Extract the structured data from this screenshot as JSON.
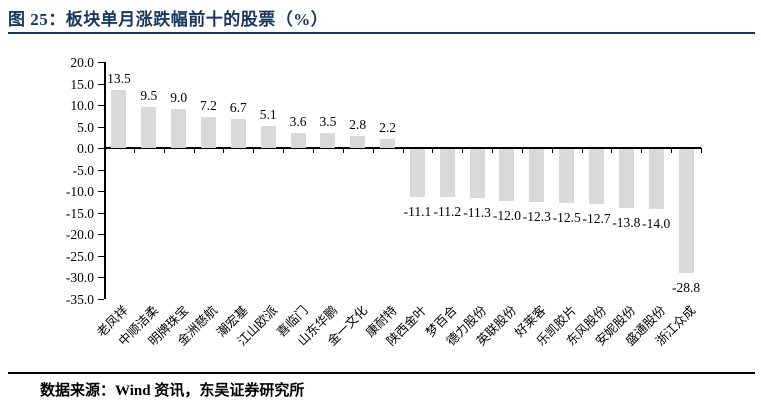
{
  "header": {
    "title": "图 25：板块单月涨跌幅前十的股票（%）"
  },
  "footer": {
    "source": "数据来源：Wind 资讯，东吴证券研究所"
  },
  "colors": {
    "accent_navy": "#17375E",
    "bar_fill": "#D9D9D9",
    "axis": "#000000",
    "text": "#000000"
  },
  "chart_data": {
    "type": "bar",
    "title": "板块单月涨跌幅前十的股票（%）",
    "categories": [
      "老凤祥",
      "中顺洁柔",
      "明牌珠宝",
      "金洲慈航",
      "潮宏基",
      "江山欧派",
      "喜临门",
      "山东华鹏",
      "金一文化",
      "康耐特",
      "陕西金叶",
      "梦百合",
      "德力股份",
      "英联股份",
      "好莱客",
      "乐凯胶片",
      "东风股份",
      "安妮股份",
      "盛通股份",
      "浙江众成"
    ],
    "values": [
      13.5,
      9.5,
      9.0,
      7.2,
      6.7,
      5.1,
      3.6,
      3.5,
      2.8,
      2.2,
      -11.1,
      -11.2,
      -11.3,
      -12.0,
      -12.3,
      -12.5,
      -12.7,
      -13.8,
      -14.0,
      -28.8
    ],
    "data_label_texts": [
      "13.5",
      "9.5",
      "9.0",
      "7.2",
      "6.7",
      "5.1",
      "3.6",
      "3.5",
      "2.8",
      "2.2",
      "-11.1",
      "-11.2",
      "-11.3",
      "-12.0",
      "-12.3",
      "-12.5",
      "-12.7",
      "-13.8",
      "-14.0",
      "-28.8"
    ],
    "ylim": [
      -35,
      20
    ],
    "ytick_step": 5,
    "ytick_labels": [
      "20.0",
      "15.0",
      "10.0",
      "5.0",
      "0.0",
      "-5.0",
      "-10.0",
      "-15.0",
      "-20.0",
      "-25.0",
      "-30.0",
      "-35.0"
    ],
    "grid": false,
    "legend": null,
    "data_labels": true,
    "bar_orientation": "vertical"
  }
}
